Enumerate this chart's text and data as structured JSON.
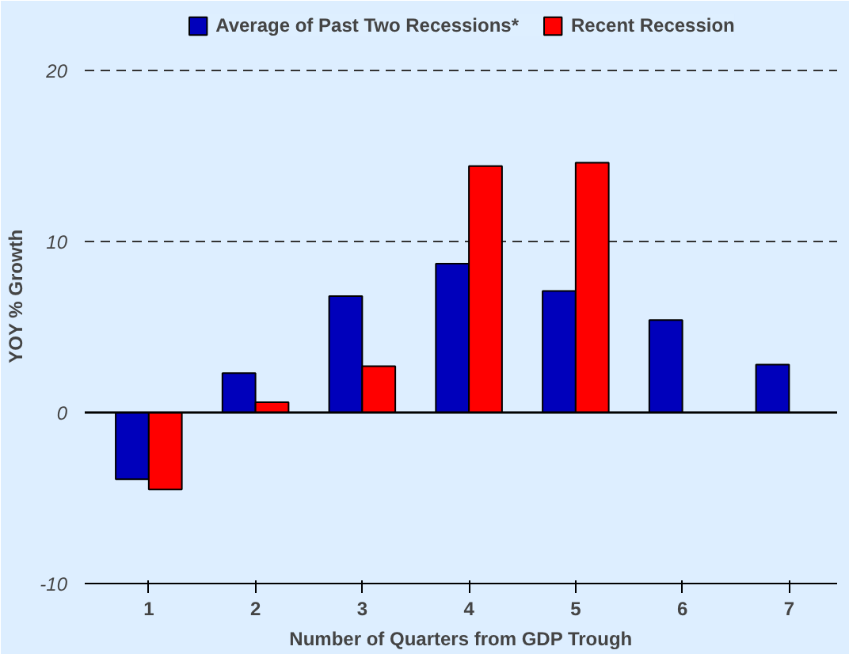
{
  "chart_data": {
    "type": "bar",
    "xlabel": "Number of Quarters from GDP Trough",
    "ylabel": "YOY % Growth",
    "categories": [
      "1",
      "2",
      "3",
      "4",
      "5",
      "6",
      "7"
    ],
    "series": [
      {
        "name": "Average of Past Two Recessions*",
        "color": "#0000bb",
        "values": [
          -3.9,
          2.3,
          6.8,
          8.7,
          7.1,
          5.4,
          2.8
        ]
      },
      {
        "name": "Recent Recession",
        "color": "#ff0000",
        "values": [
          -4.5,
          0.6,
          2.7,
          14.4,
          14.6,
          null,
          null
        ]
      }
    ],
    "ylim": [
      -10,
      23.6
    ],
    "yticks": [
      -10,
      0,
      10,
      20
    ],
    "grid": "y",
    "legend": "top"
  }
}
